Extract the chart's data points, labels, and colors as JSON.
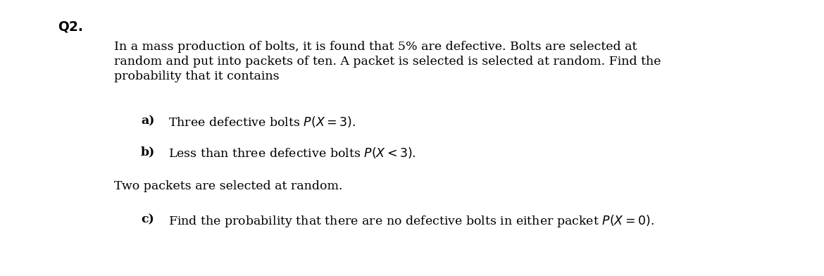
{
  "background_color": "#ffffff",
  "text_color": "#000000",
  "q_label": "Q2.",
  "q_label_fontsize": 13.5,
  "intro_line1": "In a mass production of bolts, it is found that 5% are defective. Bolts are selected at",
  "intro_line2": "random and put into packets of ten. A packet is selected is selected at random. Find the",
  "intro_line3": "probability that it contains",
  "part_a_bold": "a)",
  "part_a_text": "  Three defective bolts ",
  "part_a_math": "$P(X = 3)$.",
  "part_b_bold": "b)",
  "part_b_text": "  Less than three defective bolts ",
  "part_b_math": "$P(X < 3)$.",
  "two_packets": "Two packets are selected at random.",
  "part_c_bold": "c)",
  "part_c_text": "  Find the probability that there are no defective bolts in either packet ",
  "part_c_math": "$P(X = 0)$.",
  "fontsize": 12.5
}
